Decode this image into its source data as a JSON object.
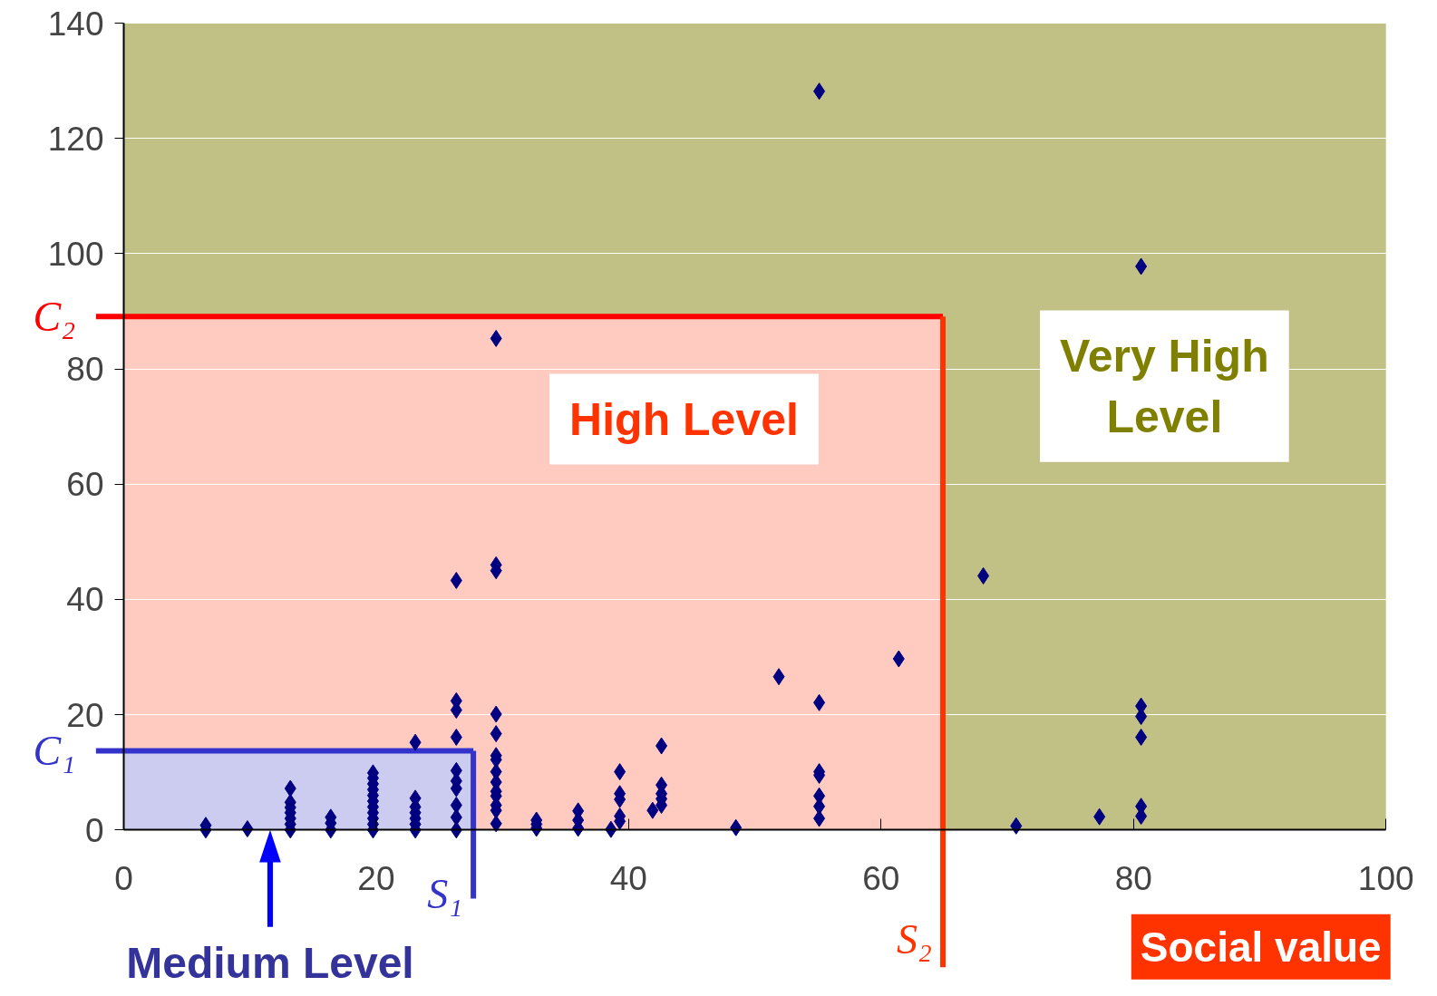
{
  "chart_data": {
    "type": "scatter",
    "xlabel": "Social value",
    "color": "#000080",
    "marker": "diamond",
    "x": [
      6.5,
      6.5,
      9.8,
      13.2,
      13.2,
      13.2,
      13.2,
      13.2,
      13.2,
      13.2,
      16.4,
      16.4,
      16.4,
      19.75,
      19.75,
      19.75,
      19.75,
      19.75,
      19.75,
      19.75,
      19.75,
      19.75,
      19.75,
      19.75,
      23.1,
      23.1,
      23.1,
      23.1,
      23.1,
      23.1,
      23.1,
      26.35,
      26.35,
      26.35,
      26.35,
      26.35,
      26.35,
      26.35,
      26.35,
      26.35,
      26.35,
      29.5,
      29.5,
      29.5,
      29.5,
      29.5,
      29.5,
      29.5,
      29.5,
      29.5,
      29.5,
      29.5,
      29.5,
      29.5,
      29.5,
      32.7,
      32.7,
      32.7,
      36.0,
      36.0,
      36.0,
      38.6,
      39.3,
      39.3,
      39.3,
      39.3,
      39.3,
      41.9,
      42.6,
      42.6,
      42.6,
      42.6,
      42.6,
      48.5,
      51.9,
      55.1,
      55.1,
      55.1,
      55.1,
      55.1,
      55.1,
      55.1,
      61.4,
      68.1,
      70.7,
      77.3,
      80.6,
      80.6,
      80.6,
      80.6,
      80.6,
      80.6
    ],
    "values": [
      0,
      0.8,
      0.2,
      0,
      1,
      2,
      3,
      3.9,
      4.8,
      7.2,
      0,
      1.2,
      2.2,
      0,
      1,
      2,
      3,
      4,
      5,
      6,
      7,
      8,
      9,
      9.9,
      0,
      1,
      2,
      3,
      4,
      5.5,
      15.2,
      0,
      2.2,
      4.3,
      7.2,
      8.5,
      10.3,
      16.1,
      20.8,
      22.4,
      43.3,
      1.1,
      3.4,
      4.3,
      5.9,
      6.7,
      8.3,
      10.1,
      12.2,
      12.9,
      16.7,
      20.1,
      45.0,
      46.0,
      85.3,
      0.3,
      1,
      1.7,
      0.3,
      1.7,
      3.3,
      0.1,
      1.5,
      2.4,
      5.3,
      6.3,
      10.1,
      3.4,
      4.3,
      5.4,
      6.3,
      7.8,
      14.6,
      0.4,
      26.6,
      2.0,
      4.1,
      5.9,
      9.5,
      10.1,
      22.1,
      128.2,
      29.7,
      44.1,
      0.7,
      2.3,
      2.4,
      4.1,
      16.1,
      19.7,
      21.5,
      97.8
    ],
    "xlim": [
      0,
      100
    ],
    "ylim": [
      0,
      140
    ],
    "xticks": [
      0,
      20,
      40,
      60,
      80,
      100
    ],
    "yticks": [
      0,
      20,
      40,
      60,
      80,
      100,
      120,
      140
    ],
    "grid": "y",
    "bands": [
      {
        "axis": "y",
        "from": 0,
        "to": 140,
        "color": "#c2c185",
        "label": "Very High Level"
      },
      {
        "axis": "y",
        "from": 0,
        "to": 89.1,
        "color": "#ffcabf",
        "label": "High Level"
      },
      {
        "axis": "y",
        "from": 0,
        "to": 13.75,
        "color": "#ccccf0"
      }
    ],
    "annotations": [
      {
        "text": "Medium Level",
        "x": 11.6,
        "y": 0
      }
    ],
    "ref_lines": [
      {
        "axis": "y",
        "value": 89.1,
        "label": "C₂",
        "color": "#ff0000"
      },
      {
        "axis": "x",
        "value": 64.9,
        "label": "S₂",
        "color": "#ff3300"
      },
      {
        "axis": "y",
        "value": 13.75,
        "label": "C₁",
        "color": "#3333cc"
      },
      {
        "axis": "x",
        "value": 27.7,
        "label": "S₁",
        "color": "#3333cc"
      }
    ]
  }
}
